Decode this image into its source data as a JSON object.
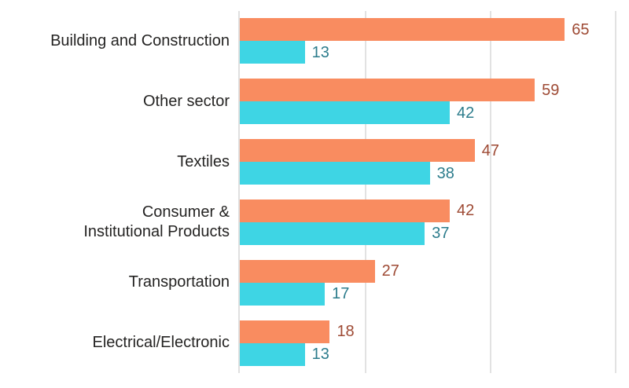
{
  "chart_data": {
    "type": "bar",
    "orientation": "horizontal",
    "title": "",
    "xlabel": "",
    "ylabel": "",
    "categories": [
      "Building and Construction",
      "Other sector",
      "Textiles",
      "Consumer & Institutional Products",
      "Transportation",
      "Electrical/Electronic"
    ],
    "categories_display": [
      "Building and Construction",
      "Other sector",
      "Textiles",
      "Consumer &\nInstitutional Products",
      "Transportation",
      "Electrical/Electronic"
    ],
    "series": [
      {
        "name": "orange-series",
        "color": "#F98C60",
        "label_color": "#9E4A34",
        "values": [
          65,
          59,
          47,
          42,
          27,
          18
        ]
      },
      {
        "name": "cyan-series",
        "color": "#3ED5E4",
        "label_color": "#2C7C8C",
        "values": [
          13,
          42,
          38,
          37,
          17,
          13
        ]
      }
    ],
    "data_labels": true,
    "legend": "none",
    "xlim": [
      0,
      76.6
    ],
    "gridlines": [
      25,
      50,
      75
    ],
    "grid": true,
    "gridline_color": "#E2E2E2",
    "axis_line_color": "#E0E0E0",
    "category_label_color": "#252423",
    "background_color": "#FFFFFF"
  }
}
